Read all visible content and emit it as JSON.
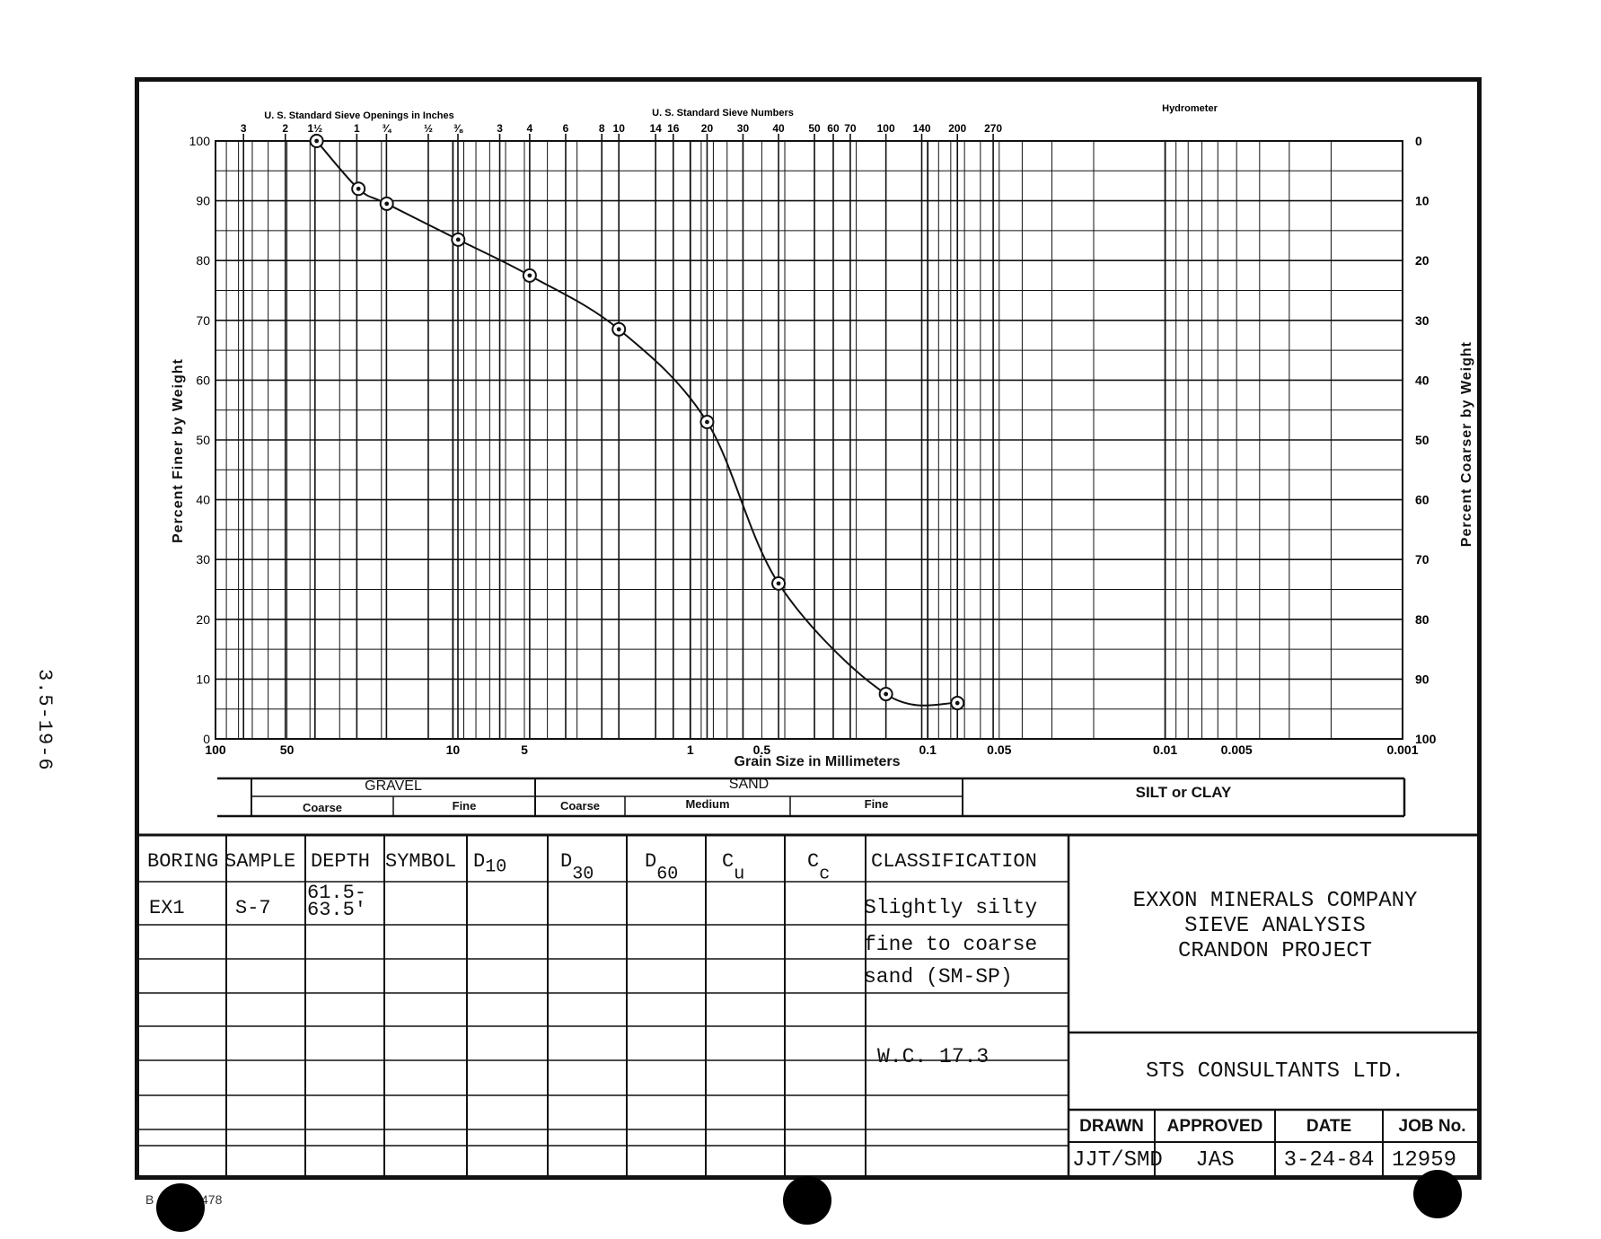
{
  "page_number": "3.5-19-6",
  "chart_data": {
    "type": "line",
    "xscale": "log",
    "xlim": [
      100,
      0.001
    ],
    "ylim": [
      0,
      100
    ],
    "xlabel": "Grain Size in Millimeters",
    "ylabel": "Percent Finer by Weight",
    "y2label": "Percent Coarser by Weight",
    "top_labels": {
      "inches": "U. S. Standard Sieve Openings in Inches",
      "numbers": "U. S. Standard Sieve Numbers",
      "hydrometer": "Hydrometer"
    },
    "x_tick_labels": [
      {
        "x": 100,
        "label": "100"
      },
      {
        "x": 50,
        "label": "50"
      },
      {
        "x": 10,
        "label": "10"
      },
      {
        "x": 5,
        "label": "5"
      },
      {
        "x": 1,
        "label": "1"
      },
      {
        "x": 0.5,
        "label": "0.5"
      },
      {
        "x": 0.1,
        "label": "0.1"
      },
      {
        "x": 0.05,
        "label": "0.05"
      },
      {
        "x": 0.01,
        "label": "0.01"
      },
      {
        "x": 0.005,
        "label": "0.005"
      },
      {
        "x": 0.001,
        "label": "0.001"
      }
    ],
    "y_left_ticks": [
      "0",
      "10",
      "20",
      "30",
      "40",
      "50",
      "60",
      "70",
      "80",
      "90",
      "100"
    ],
    "y_right_ticks": [
      "100",
      "90",
      "80",
      "70",
      "60",
      "50",
      "40",
      "30",
      "20",
      "10",
      "0"
    ],
    "inch_sieves": [
      {
        "x": 76.2,
        "label": "3"
      },
      {
        "x": 50.8,
        "label": "2"
      },
      {
        "x": 38.1,
        "label": "1½"
      },
      {
        "x": 25.4,
        "label": "1"
      },
      {
        "x": 19.05,
        "label": "¾"
      },
      {
        "x": 12.7,
        "label": "½"
      },
      {
        "x": 9.525,
        "label": "⅜"
      }
    ],
    "number_sieves": [
      {
        "x": 6.35,
        "label": "3"
      },
      {
        "x": 4.75,
        "label": "4"
      },
      {
        "x": 3.35,
        "label": "6"
      },
      {
        "x": 2.36,
        "label": "8"
      },
      {
        "x": 2.0,
        "label": "10"
      },
      {
        "x": 1.4,
        "label": "14"
      },
      {
        "x": 1.18,
        "label": "16"
      },
      {
        "x": 0.85,
        "label": "20"
      },
      {
        "x": 0.6,
        "label": "30"
      },
      {
        "x": 0.425,
        "label": "40"
      },
      {
        "x": 0.3,
        "label": "50"
      },
      {
        "x": 0.25,
        "label": "60"
      },
      {
        "x": 0.212,
        "label": "70"
      },
      {
        "x": 0.15,
        "label": "100"
      },
      {
        "x": 0.106,
        "label": "140"
      },
      {
        "x": 0.075,
        "label": "200"
      },
      {
        "x": 0.053,
        "label": "270"
      }
    ],
    "series": [
      {
        "x": [
          37.5,
          25.0,
          19.0,
          9.5,
          4.75,
          2.0,
          0.85,
          0.425,
          0.15,
          0.075
        ],
        "y": [
          100,
          92,
          89.5,
          83.5,
          77.5,
          68.5,
          53,
          26,
          7.5,
          6
        ]
      }
    ],
    "grid": true
  },
  "classification_bar": {
    "gravel": "GRAVEL",
    "sand": "SAND",
    "silt_clay": "SILT or CLAY",
    "gravel_coarse": "Coarse",
    "gravel_fine": "Fine",
    "sand_coarse": "Coarse",
    "sand_medium": "Medium",
    "sand_fine": "Fine"
  },
  "table": {
    "headers": {
      "boring": "BORING",
      "sample": "SAMPLE",
      "depth": "DEPTH",
      "symbol": "SYMBOL",
      "d10": "D",
      "d10_sub": "10",
      "d30": "D",
      "d30_sub": "30",
      "d60": "D",
      "d60_sub": "60",
      "cu": "C",
      "cu_sub": "u",
      "cc": "C",
      "cc_sub": "c",
      "classification": "CLASSIFICATION"
    },
    "row": {
      "boring": "EX1",
      "sample": "S-7",
      "depth_1": "61.5-",
      "depth_2": "63.5'",
      "class_1": "Slightly silty",
      "class_2": "fine to coarse",
      "class_3": "sand (SM-SP)",
      "wc": "W.C. 17.3"
    }
  },
  "title_block": {
    "company": "EXXON MINERALS COMPANY",
    "report": "SIEVE ANALYSIS",
    "project": "CRANDON PROJECT",
    "consultant": "STS CONSULTANTS LTD.",
    "drawn_label": "DRAWN",
    "approved_label": "APPROVED",
    "date_label": "DATE",
    "job_label": "JOB No.",
    "drawn": "JJT/SMD",
    "approved": "JAS",
    "date": "3-24-84",
    "job": "12959"
  },
  "footer": {
    "form_prefix": "B",
    "form_suffix": "478"
  }
}
